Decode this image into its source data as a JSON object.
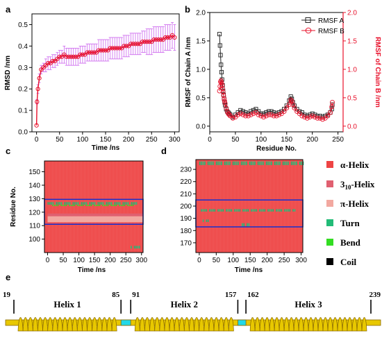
{
  "chart_data": [
    {
      "panel": "a",
      "type": "line",
      "xlabel": "Time /ns",
      "ylabel": "RMSD /nm",
      "xlim": [
        -10,
        310
      ],
      "ylim": [
        0,
        0.55
      ],
      "xticks": [
        "0",
        "50",
        "100",
        "150",
        "200",
        "250",
        "300"
      ],
      "yticks": [
        "0.0",
        "0.1",
        "0.2",
        "0.3",
        "0.4",
        "0.5"
      ],
      "color": "#e8102a",
      "error_color": "#cc66ee",
      "series": [
        {
          "x": [
            0,
            1,
            3,
            6,
            10,
            15,
            20,
            25,
            30,
            35,
            40,
            45,
            50,
            55,
            60,
            65,
            70,
            75,
            80,
            85,
            90,
            95,
            100,
            105,
            110,
            115,
            120,
            125,
            130,
            135,
            140,
            145,
            150,
            155,
            160,
            165,
            170,
            175,
            180,
            185,
            190,
            195,
            200,
            205,
            210,
            215,
            220,
            225,
            230,
            235,
            240,
            245,
            250,
            255,
            260,
            265,
            270,
            275,
            280,
            285,
            290,
            295,
            300
          ],
          "y": [
            0.03,
            0.14,
            0.2,
            0.25,
            0.29,
            0.3,
            0.31,
            0.32,
            0.32,
            0.33,
            0.33,
            0.34,
            0.35,
            0.35,
            0.36,
            0.35,
            0.35,
            0.35,
            0.35,
            0.35,
            0.35,
            0.36,
            0.36,
            0.36,
            0.37,
            0.37,
            0.37,
            0.37,
            0.37,
            0.38,
            0.38,
            0.38,
            0.38,
            0.38,
            0.39,
            0.39,
            0.39,
            0.39,
            0.39,
            0.39,
            0.4,
            0.4,
            0.4,
            0.41,
            0.41,
            0.41,
            0.41,
            0.41,
            0.42,
            0.42,
            0.42,
            0.42,
            0.42,
            0.43,
            0.43,
            0.43,
            0.43,
            0.43,
            0.44,
            0.44,
            0.44,
            0.45,
            0.44
          ],
          "err": [
            0.0,
            0.01,
            0.02,
            0.02,
            0.02,
            0.02,
            0.03,
            0.03,
            0.03,
            0.03,
            0.03,
            0.03,
            0.03,
            0.03,
            0.04,
            0.04,
            0.04,
            0.04,
            0.04,
            0.04,
            0.04,
            0.04,
            0.04,
            0.04,
            0.04,
            0.04,
            0.04,
            0.04,
            0.04,
            0.05,
            0.05,
            0.05,
            0.05,
            0.05,
            0.05,
            0.05,
            0.05,
            0.05,
            0.05,
            0.05,
            0.05,
            0.05,
            0.05,
            0.05,
            0.05,
            0.05,
            0.05,
            0.05,
            0.05,
            0.05,
            0.06,
            0.06,
            0.06,
            0.06,
            0.06,
            0.06,
            0.06,
            0.06,
            0.06,
            0.06,
            0.06,
            0.06,
            0.06
          ]
        }
      ]
    },
    {
      "panel": "b",
      "type": "line",
      "xlabel": "Residue No.",
      "ylabel": "RMSF of Chain A /nm",
      "ylabel_right": "RMSF of Chain B /nm",
      "xlim": [
        0,
        260
      ],
      "ylim": [
        -0.1,
        2.0
      ],
      "ylim_right": [
        -0.1,
        2.0
      ],
      "xticks": [
        "0",
        "50",
        "100",
        "150",
        "200",
        "250"
      ],
      "yticks": [
        "0.0",
        "0.5",
        "1.0",
        "1.5",
        "2.0"
      ],
      "yticks_right": [
        "0.0",
        "0.5",
        "1.0",
        "1.5",
        "2.0"
      ],
      "legend": "top-right",
      "series": [
        {
          "name": "RMSF A",
          "color": "#222222",
          "x": [
            19,
            20,
            21,
            22,
            23,
            24,
            25,
            26,
            27,
            28,
            29,
            30,
            32,
            34,
            36,
            38,
            40,
            45,
            50,
            55,
            60,
            65,
            70,
            75,
            80,
            85,
            90,
            95,
            100,
            105,
            110,
            115,
            120,
            125,
            130,
            135,
            140,
            145,
            150,
            155,
            158,
            160,
            162,
            165,
            170,
            175,
            180,
            185,
            190,
            195,
            200,
            205,
            210,
            215,
            220,
            225,
            230,
            235,
            238,
            239
          ],
          "y": [
            1.62,
            1.42,
            1.25,
            1.08,
            0.95,
            0.82,
            0.72,
            0.62,
            0.55,
            0.48,
            0.42,
            0.37,
            0.3,
            0.26,
            0.24,
            0.22,
            0.2,
            0.16,
            0.2,
            0.24,
            0.28,
            0.26,
            0.24,
            0.22,
            0.26,
            0.28,
            0.3,
            0.26,
            0.22,
            0.22,
            0.24,
            0.26,
            0.26,
            0.24,
            0.22,
            0.24,
            0.26,
            0.3,
            0.36,
            0.45,
            0.52,
            0.48,
            0.42,
            0.36,
            0.3,
            0.26,
            0.24,
            0.2,
            0.18,
            0.2,
            0.22,
            0.2,
            0.18,
            0.18,
            0.16,
            0.18,
            0.2,
            0.24,
            0.3,
            0.38
          ]
        },
        {
          "name": "RMSF B",
          "color": "#e8102a",
          "x": [
            19,
            20,
            21,
            22,
            23,
            24,
            25,
            26,
            27,
            28,
            29,
            30,
            32,
            34,
            36,
            38,
            40,
            45,
            50,
            55,
            60,
            65,
            70,
            75,
            80,
            85,
            90,
            95,
            100,
            105,
            110,
            115,
            120,
            125,
            130,
            135,
            140,
            145,
            150,
            155,
            158,
            160,
            162,
            165,
            170,
            175,
            180,
            185,
            190,
            195,
            200,
            205,
            210,
            215,
            220,
            225,
            230,
            235,
            238,
            239
          ],
          "y": [
            0.62,
            0.7,
            0.78,
            0.8,
            0.76,
            0.72,
            0.66,
            0.6,
            0.54,
            0.48,
            0.44,
            0.4,
            0.32,
            0.26,
            0.22,
            0.2,
            0.18,
            0.14,
            0.16,
            0.2,
            0.22,
            0.2,
            0.18,
            0.18,
            0.2,
            0.22,
            0.24,
            0.2,
            0.18,
            0.16,
            0.18,
            0.2,
            0.2,
            0.18,
            0.18,
            0.2,
            0.22,
            0.26,
            0.32,
            0.38,
            0.46,
            0.44,
            0.38,
            0.32,
            0.26,
            0.22,
            0.18,
            0.16,
            0.14,
            0.16,
            0.18,
            0.16,
            0.14,
            0.14,
            0.12,
            0.14,
            0.18,
            0.24,
            0.34,
            0.42
          ]
        }
      ]
    },
    {
      "panel": "c",
      "type": "heatmap",
      "xlabel": "Time /ns",
      "ylabel": "Residue No.",
      "xlim": [
        -10,
        305
      ],
      "ylim": [
        90,
        158
      ],
      "xticks": [
        "0",
        "50",
        "100",
        "150",
        "200",
        "250",
        "300"
      ],
      "yticks": [
        "100",
        "110",
        "120",
        "130",
        "140",
        "150"
      ],
      "base": "α-Helix",
      "bands": [
        {
          "type": "π-Helix",
          "x": [
            0,
            305
          ],
          "y": [
            112.5,
            117
          ]
        },
        {
          "type": "3₁₀-Helix",
          "x": [
            0,
            305
          ],
          "y": [
            117,
            119
          ]
        }
      ],
      "spots": [
        {
          "type": "Turn",
          "x": [
            0,
            290
          ],
          "y": [
            125.5,
            127.5
          ]
        },
        {
          "type": "Bend",
          "x": [
            10,
            280
          ],
          "y": [
            124.5,
            125.5
          ]
        },
        {
          "type": "Turn",
          "x": [
            265,
            300
          ],
          "y": [
            93,
            95
          ]
        }
      ],
      "highlight_box": {
        "x": [
          -10,
          305
        ],
        "y": [
          111,
          129.5
        ]
      }
    },
    {
      "panel": "d",
      "type": "heatmap",
      "xlabel": "Time /ns",
      "ylabel": "",
      "xlim": [
        -10,
        305
      ],
      "ylim": [
        162,
        238
      ],
      "xticks": [
        "0",
        "50",
        "100",
        "150",
        "200",
        "250",
        "300"
      ],
      "yticks": [
        "170",
        "180",
        "190",
        "200",
        "210",
        "220",
        "230"
      ],
      "base": "α-Helix",
      "bands": [],
      "spots": [
        {
          "type": "Turn",
          "x": [
            0,
            305
          ],
          "y": [
            233.5,
            236.5
          ]
        },
        {
          "type": "Turn",
          "x": [
            0,
            280
          ],
          "y": [
            195.5,
            197.5
          ]
        },
        {
          "type": "Turn",
          "x": [
            10,
            25
          ],
          "y": [
            187,
            189
          ]
        },
        {
          "type": "Turn",
          "x": [
            125,
            145
          ],
          "y": [
            183,
            186
          ]
        }
      ],
      "highlight_box": {
        "x": [
          -10,
          305
        ],
        "y": [
          183,
          205
        ]
      }
    },
    {
      "panel": "e",
      "type": "diagram",
      "residue_range": [
        1,
        250
      ],
      "markers": [
        "19",
        "85",
        "91",
        "157",
        "162",
        "239"
      ],
      "helices": [
        {
          "label": "Helix 1",
          "start": 19,
          "end": 85
        },
        {
          "label": "Helix 2",
          "start": 91,
          "end": 157
        },
        {
          "label": "Helix 3",
          "start": 162,
          "end": 239
        }
      ],
      "turns": [
        {
          "start": 85,
          "end": 91
        },
        {
          "start": 157,
          "end": 162
        }
      ]
    }
  ],
  "panel_labels": [
    "a",
    "b",
    "c",
    "d",
    "e"
  ],
  "legend_c_d": [
    {
      "label": "α-Helix",
      "color": "#ee4444"
    },
    {
      "label": "3₁₀-Helix",
      "color": "#e06070"
    },
    {
      "label": "π-Helix",
      "color": "#f2a8a0"
    },
    {
      "label": "Turn",
      "color": "#22bb77"
    },
    {
      "label": "Bend",
      "color": "#33dd22"
    },
    {
      "label": "Coil",
      "color": "#000000"
    }
  ],
  "colors": {
    "red": "#e8102a",
    "error": "#cc66ee",
    "black": "#222222",
    "helix_fill": "#e8c800",
    "helix_stroke": "#8a6a00",
    "turn_fill": "#22d8e8",
    "box": "#1530d0"
  }
}
